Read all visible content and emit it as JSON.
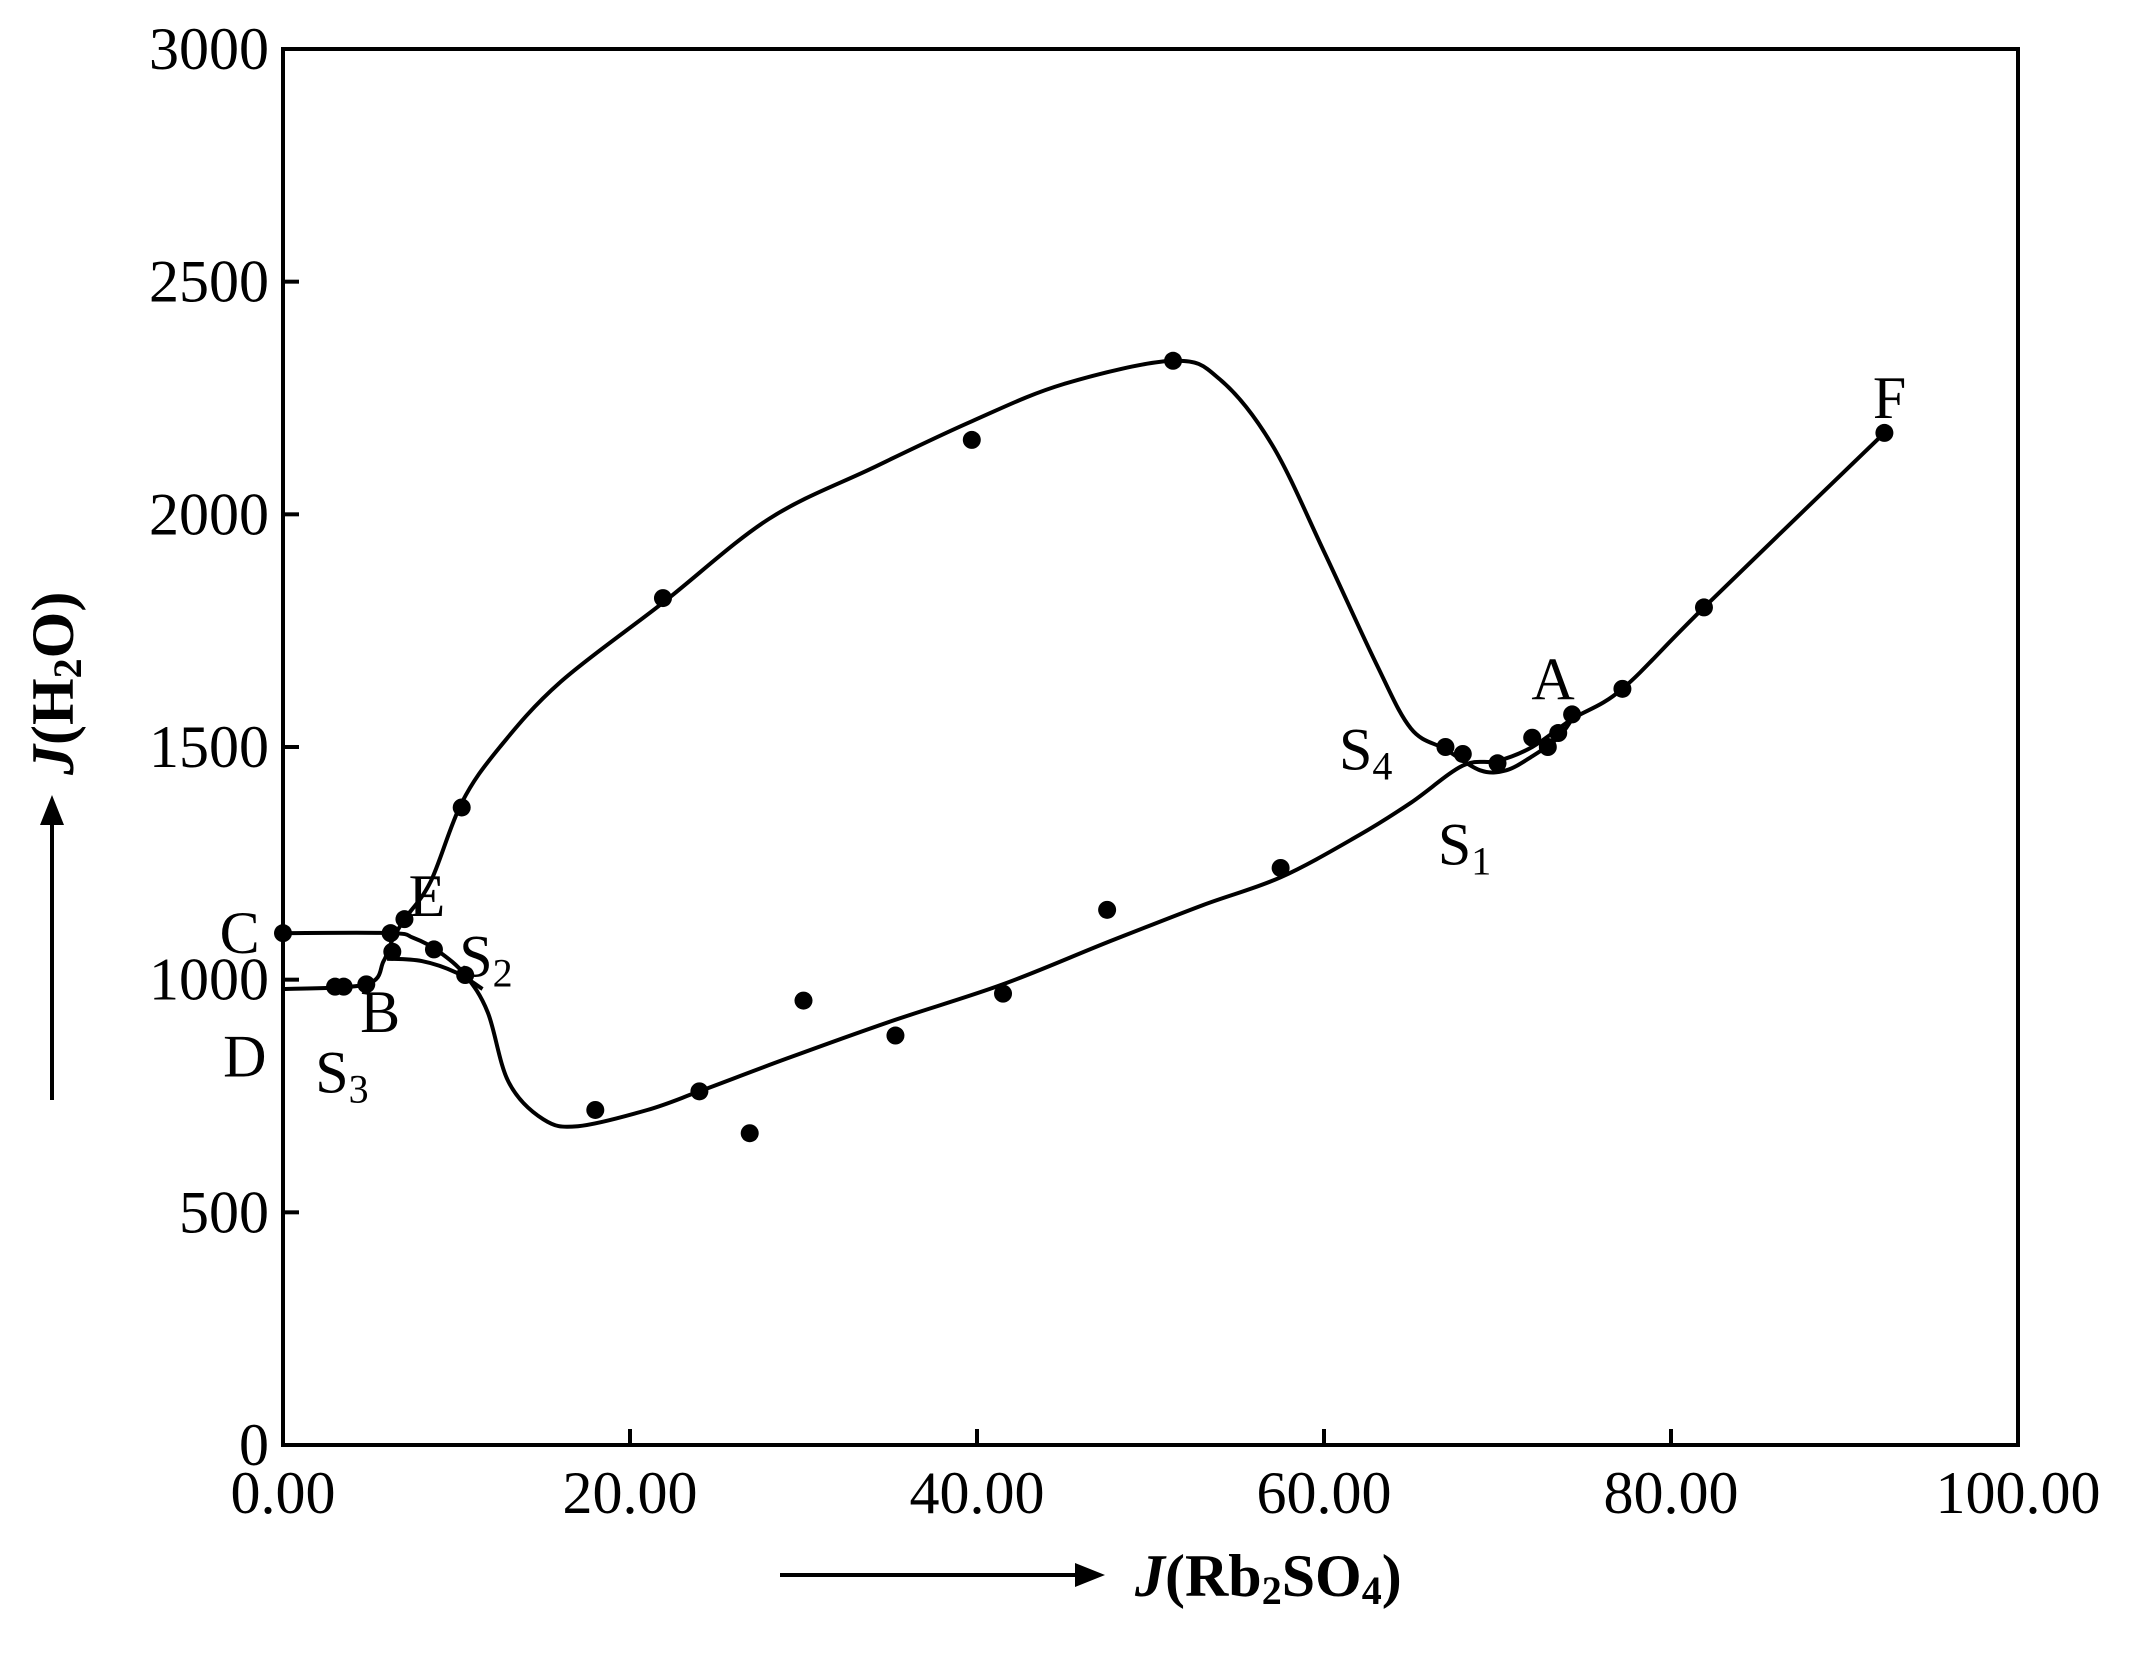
{
  "chart_data": {
    "type": "scatter",
    "title": "",
    "xlabel": {
      "italic": "J",
      "open": "(Rb",
      "sub1": "2",
      "mid": "SO",
      "sub2": "4",
      "close": ")"
    },
    "ylabel": {
      "italic": "J",
      "open": "(H",
      "sub1": "2",
      "rest": "O)"
    },
    "xlim": [
      0,
      100
    ],
    "ylim": [
      0,
      3000
    ],
    "x_ticks": [
      0,
      20,
      40,
      60,
      80,
      100
    ],
    "x_tick_labels": [
      "0.00",
      "20.00",
      "40.00",
      "60.00",
      "80.00",
      "100.00"
    ],
    "y_ticks": [
      0,
      500,
      1000,
      1500,
      2000,
      2500,
      3000
    ],
    "y_tick_labels": [
      "0",
      "500",
      "1000",
      "1500",
      "2000",
      "2500",
      "3000"
    ],
    "grid": false,
    "legend": "none",
    "points": [
      {
        "x": 0.0,
        "y": 1100
      },
      {
        "x": 3.0,
        "y": 985
      },
      {
        "x": 3.5,
        "y": 985
      },
      {
        "x": 4.8,
        "y": 990
      },
      {
        "x": 6.2,
        "y": 1100
      },
      {
        "x": 6.3,
        "y": 1060
      },
      {
        "x": 7.0,
        "y": 1130
      },
      {
        "x": 8.7,
        "y": 1065
      },
      {
        "x": 10.5,
        "y": 1010
      },
      {
        "x": 10.3,
        "y": 1370
      },
      {
        "x": 18.0,
        "y": 720
      },
      {
        "x": 21.9,
        "y": 1820
      },
      {
        "x": 24.0,
        "y": 760
      },
      {
        "x": 26.9,
        "y": 670
      },
      {
        "x": 30.0,
        "y": 955
      },
      {
        "x": 35.3,
        "y": 880
      },
      {
        "x": 39.7,
        "y": 2160
      },
      {
        "x": 41.5,
        "y": 970
      },
      {
        "x": 47.5,
        "y": 1150
      },
      {
        "x": 51.3,
        "y": 2330
      },
      {
        "x": 57.5,
        "y": 1240
      },
      {
        "x": 67.0,
        "y": 1500
      },
      {
        "x": 68.0,
        "y": 1485
      },
      {
        "x": 70.0,
        "y": 1465
      },
      {
        "x": 72.0,
        "y": 1520
      },
      {
        "x": 72.9,
        "y": 1500
      },
      {
        "x": 73.5,
        "y": 1530
      },
      {
        "x": 74.3,
        "y": 1570
      },
      {
        "x": 77.2,
        "y": 1625
      },
      {
        "x": 81.9,
        "y": 1800
      },
      {
        "x": 92.3,
        "y": 2175
      }
    ],
    "curves": [
      {
        "points": [
          [
            0,
            980
          ],
          [
            4.8,
            990
          ],
          [
            5.8,
            1040
          ],
          [
            6.3,
            1085
          ],
          [
            7.0,
            1130
          ],
          [
            8.5,
            1210
          ],
          [
            10.3,
            1380
          ],
          [
            12.5,
            1500
          ],
          [
            16.0,
            1640
          ],
          [
            21.9,
            1810
          ],
          [
            28.0,
            1990
          ],
          [
            34.0,
            2100
          ],
          [
            39.7,
            2200
          ],
          [
            45.0,
            2280
          ],
          [
            51.3,
            2330
          ],
          [
            54.0,
            2290
          ],
          [
            57.0,
            2150
          ],
          [
            60.0,
            1920
          ],
          [
            63.0,
            1680
          ],
          [
            65.0,
            1540
          ],
          [
            67.0,
            1495
          ],
          [
            69.0,
            1450
          ],
          [
            70.5,
            1450
          ],
          [
            72.0,
            1480
          ],
          [
            73.5,
            1520
          ],
          [
            74.3,
            1560
          ]
        ]
      },
      {
        "points": [
          [
            0,
            1100
          ],
          [
            6.2,
            1100
          ],
          [
            7.5,
            1090
          ],
          [
            9.0,
            1060
          ],
          [
            10.5,
            1010
          ],
          [
            11.8,
            930
          ],
          [
            13.0,
            780
          ],
          [
            15.0,
            700
          ],
          [
            17.0,
            685
          ],
          [
            21.0,
            720
          ],
          [
            24.0,
            760
          ],
          [
            29.0,
            830
          ],
          [
            35.0,
            910
          ],
          [
            41.5,
            990
          ],
          [
            47.5,
            1080
          ],
          [
            53.0,
            1160
          ],
          [
            57.5,
            1220
          ],
          [
            62.0,
            1310
          ],
          [
            65.0,
            1380
          ],
          [
            68.0,
            1460
          ],
          [
            70.0,
            1470
          ],
          [
            72.0,
            1500
          ],
          [
            74.3,
            1560
          ],
          [
            77.2,
            1625
          ],
          [
            81.9,
            1800
          ],
          [
            92.3,
            2175
          ]
        ]
      },
      {
        "points": [
          [
            6.0,
            1045
          ],
          [
            8.0,
            1040
          ],
          [
            10.0,
            1015
          ],
          [
            11.5,
            980
          ]
        ]
      }
    ],
    "annotations": [
      {
        "label": "C",
        "sub": "",
        "x": -2.5,
        "y": 1100
      },
      {
        "label": "D",
        "sub": "",
        "x": -2.2,
        "y": 835
      },
      {
        "label": "S",
        "sub": "3",
        "x": 3.4,
        "y": 800
      },
      {
        "label": "B",
        "sub": "",
        "x": 5.6,
        "y": 930
      },
      {
        "label": "E",
        "sub": "",
        "x": 8.3,
        "y": 1180
      },
      {
        "label": "S",
        "sub": "2",
        "x": 11.7,
        "y": 1050
      },
      {
        "label": "S",
        "sub": "4",
        "x": 62.4,
        "y": 1495
      },
      {
        "label": "S",
        "sub": "1",
        "x": 68.1,
        "y": 1290
      },
      {
        "label": "A",
        "sub": "",
        "x": 73.2,
        "y": 1645
      },
      {
        "label": "F",
        "sub": "",
        "x": 92.6,
        "y": 2250
      }
    ],
    "arrows": [
      "x-axis-title-arrow",
      "y-axis-title-arrow"
    ]
  }
}
